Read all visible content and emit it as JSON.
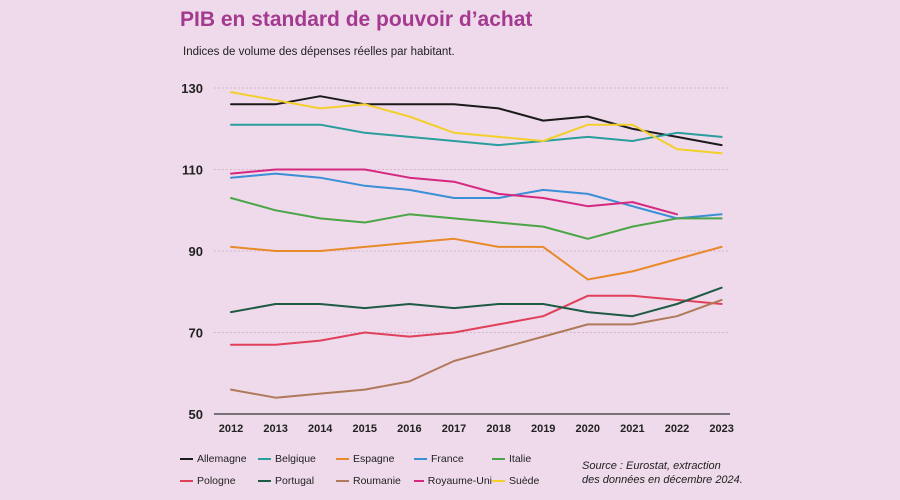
{
  "chart_data": {
    "type": "line",
    "title": "PIB en standard de pouvoir d’achat",
    "subtitle": "Indices de volume des dépenses réelles par habitant.",
    "xlabel": "",
    "ylabel": "",
    "ylim": [
      50,
      130
    ],
    "yticks": [
      50,
      70,
      90,
      110,
      130
    ],
    "categories": [
      "2012",
      "2013",
      "2014",
      "2015",
      "2016",
      "2017",
      "2018",
      "2019",
      "2020",
      "2021",
      "2022",
      "2023"
    ],
    "grid": true,
    "legend_position": "bottom",
    "series": [
      {
        "name": "Allemagne",
        "color": "#1a1a1a",
        "values": [
          126,
          126,
          128,
          126,
          126,
          126,
          125,
          122,
          123,
          120,
          118,
          116
        ]
      },
      {
        "name": "Belgique",
        "color": "#2a9d9d",
        "values": [
          121,
          121,
          121,
          119,
          118,
          117,
          116,
          117,
          118,
          117,
          119,
          118
        ]
      },
      {
        "name": "Espagne",
        "color": "#e8892a",
        "values": [
          91,
          90,
          90,
          91,
          92,
          93,
          91,
          91,
          83,
          85,
          88,
          91
        ]
      },
      {
        "name": "France",
        "color": "#3a8fd6",
        "values": [
          108,
          109,
          108,
          106,
          105,
          103,
          103,
          105,
          104,
          101,
          98,
          99
        ]
      },
      {
        "name": "Italie",
        "color": "#4aa546",
        "values": [
          103,
          100,
          98,
          97,
          99,
          98,
          97,
          96,
          93,
          96,
          98,
          98
        ]
      },
      {
        "name": "Pologne",
        "color": "#e0405a",
        "values": [
          67,
          67,
          68,
          70,
          69,
          70,
          72,
          74,
          79,
          79,
          78,
          77
        ]
      },
      {
        "name": "Portugal",
        "color": "#1f5a44",
        "values": [
          75,
          77,
          77,
          76,
          77,
          76,
          77,
          77,
          75,
          74,
          77,
          81
        ]
      },
      {
        "name": "Roumanie",
        "color": "#b07a5a",
        "values": [
          56,
          54,
          55,
          56,
          58,
          63,
          66,
          69,
          72,
          72,
          74,
          78
        ]
      },
      {
        "name": "Royaume-Uni",
        "color": "#d6287f",
        "values": [
          109,
          110,
          110,
          110,
          108,
          107,
          104,
          103,
          101,
          102,
          99,
          null
        ]
      },
      {
        "name": "Suède",
        "color": "#f2cf2a",
        "values": [
          129,
          127,
          125,
          126,
          123,
          119,
          118,
          117,
          121,
          121,
          115,
          114
        ]
      }
    ],
    "source": [
      "Source : Eurostat, extraction",
      "des données en décembre 2024."
    ]
  }
}
